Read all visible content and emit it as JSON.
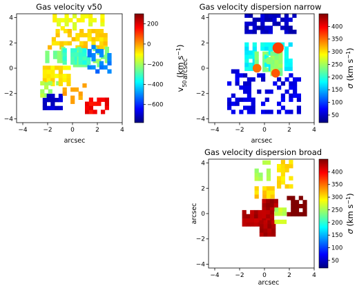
{
  "figure": {
    "xlabel_main": "arcsec",
    "ylabel_main": "arcsec"
  },
  "colorscales": {
    "jet": [
      "#00007f",
      "#0000ff",
      "#007fff",
      "#00ffff",
      "#7fff7f",
      "#ffff00",
      "#ff7f00",
      "#ff0000",
      "#7f0000"
    ]
  },
  "chart_data": [
    {
      "id": "v50",
      "type": "heatmap",
      "title": "Gas velocity v50",
      "xlabel": "arcsec",
      "ylabel": "",
      "xlim": [
        -4.5,
        4
      ],
      "ylim": [
        -4.3,
        4.3
      ],
      "xticks": [
        -4,
        -2,
        0,
        2,
        4
      ],
      "yticks": [
        -4,
        -2,
        0,
        2,
        4
      ],
      "colorbar": {
        "label": "v50 (km s^-1)",
        "label_main": "v",
        "label_sub": "50",
        "label_rest": " (km s",
        "label_sup": "−1",
        "label_end": ")",
        "vmin": -780,
        "vmax": 300,
        "ticks": [
          200,
          0,
          -200,
          -400,
          -600
        ]
      },
      "regions": [
        {
          "x": [
            -1.6,
            2.4
          ],
          "y": [
            3.0,
            4.1
          ],
          "value": -120,
          "density": 0.45
        },
        {
          "x": [
            -2.0,
            2.6
          ],
          "y": [
            1.5,
            3.0
          ],
          "value": -60,
          "density": 0.5
        },
        {
          "x": [
            -2.2,
            2.8
          ],
          "y": [
            0.1,
            1.5
          ],
          "value": -240,
          "density": 0.8
        },
        {
          "x": [
            -0.8,
            1.4
          ],
          "y": [
            0.3,
            1.4
          ],
          "value": -320,
          "density": 1.0
        },
        {
          "x": [
            -2.4,
            -0.4
          ],
          "y": [
            -1.4,
            0.2
          ],
          "value": -80,
          "density": 0.8
        },
        {
          "x": [
            -2.6,
            -1.2
          ],
          "y": [
            -2.3,
            -1.2
          ],
          "value": -200,
          "density": 0.5
        },
        {
          "x": [
            -2.4,
            -0.8
          ],
          "y": [
            -3.3,
            -2.2
          ],
          "value": -700,
          "density": 0.55
        },
        {
          "x": [
            -0.8,
            1.0
          ],
          "y": [
            -2.8,
            -1.2
          ],
          "value": -20,
          "density": 0.35
        },
        {
          "x": [
            1.0,
            2.8
          ],
          "y": [
            -3.6,
            -2.2
          ],
          "value": 170,
          "density": 0.55
        },
        {
          "x": [
            1.2,
            3.0
          ],
          "y": [
            -0.4,
            1.6
          ],
          "value": -520,
          "density": 0.5
        }
      ]
    },
    {
      "id": "disp_narrow",
      "type": "heatmap",
      "title": "Gas velocity dispersion narrow",
      "xlabel": "arcsec",
      "ylabel": "arcsec",
      "xlim": [
        -4.5,
        4
      ],
      "ylim": [
        -4.3,
        4.3
      ],
      "xticks": [
        -4,
        -2,
        0,
        2,
        4
      ],
      "yticks": [
        -4,
        -2,
        0,
        2,
        4
      ],
      "colorbar": {
        "label": "σ (km s^-1)",
        "label_main": "σ",
        "label_sub": "",
        "label_rest": " (km s",
        "label_sup": "−1",
        "label_end": ")",
        "vmin": 20,
        "vmax": 450,
        "ticks": [
          400,
          350,
          300,
          250,
          200,
          150,
          100,
          50
        ]
      },
      "regions": [
        {
          "x": [
            -1.6,
            2.4
          ],
          "y": [
            2.4,
            4.1
          ],
          "value": 50,
          "density": 0.5
        },
        {
          "x": [
            -3.0,
            -1.0
          ],
          "y": [
            -3.6,
            -0.2
          ],
          "value": 60,
          "density": 0.45
        },
        {
          "x": [
            -1.6,
            2.2
          ],
          "y": [
            -0.2,
            2.0
          ],
          "value": 180,
          "density": 0.85
        },
        {
          "x": [
            -0.8,
            1.4
          ],
          "y": [
            -0.6,
            1.2
          ],
          "value": 240,
          "density": 0.9
        },
        {
          "x": [
            -0.6,
            2.8
          ],
          "y": [
            -3.6,
            -0.6
          ],
          "value": 60,
          "density": 0.45
        }
      ],
      "blobs": [
        {
          "x": 1.1,
          "y": 1.6,
          "r": 0.45,
          "value": 370
        },
        {
          "x": -0.6,
          "y": 0.0,
          "r": 0.35,
          "value": 350
        },
        {
          "x": 0.9,
          "y": -0.4,
          "r": 0.35,
          "value": 360
        },
        {
          "x": 0.4,
          "y": 0.6,
          "r": 0.3,
          "value": 240
        }
      ]
    },
    {
      "id": "disp_broad",
      "type": "heatmap",
      "title": "Gas velocity dispersion broad",
      "xlabel": "arcsec",
      "ylabel": "arcsec",
      "xlim": [
        -4.5,
        4
      ],
      "ylim": [
        -4.3,
        4.3
      ],
      "xticks": [
        -4,
        -2,
        0,
        2,
        4
      ],
      "yticks": [
        -4,
        -2,
        0,
        2,
        4
      ],
      "colorbar": {
        "label": "σ (km s^-1)",
        "label_main": "σ",
        "label_sub": "",
        "label_rest": " (km s",
        "label_sup": "−1",
        "label_end": ")",
        "vmin": 20,
        "vmax": 450,
        "ticks": [
          400,
          350,
          300,
          250,
          200,
          150,
          100,
          50
        ]
      },
      "regions": [
        {
          "x": [
            -0.8,
            0.4
          ],
          "y": [
            2.6,
            4.2
          ],
          "value": 250,
          "density": 0.55
        },
        {
          "x": [
            1.0,
            2.2
          ],
          "y": [
            2.0,
            4.2
          ],
          "value": 300,
          "density": 0.5
        },
        {
          "x": [
            -0.8,
            0.6
          ],
          "y": [
            1.2,
            2.0
          ],
          "value": 310,
          "density": 1.0
        },
        {
          "x": [
            -0.2,
            1.0
          ],
          "y": [
            0.2,
            1.0
          ],
          "value": 430,
          "density": 1.0
        },
        {
          "x": [
            -1.8,
            0.6
          ],
          "y": [
            -1.0,
            0.2
          ],
          "value": 430,
          "density": 0.95
        },
        {
          "x": [
            -0.4,
            0.8
          ],
          "y": [
            -1.8,
            -0.8
          ],
          "value": 430,
          "density": 0.8
        },
        {
          "x": [
            0.8,
            1.6
          ],
          "y": [
            -0.8,
            0.4
          ],
          "value": 260,
          "density": 1.0
        },
        {
          "x": [
            1.8,
            3.4
          ],
          "y": [
            -0.2,
            1.2
          ],
          "value": 450,
          "density": 0.7
        }
      ]
    }
  ]
}
